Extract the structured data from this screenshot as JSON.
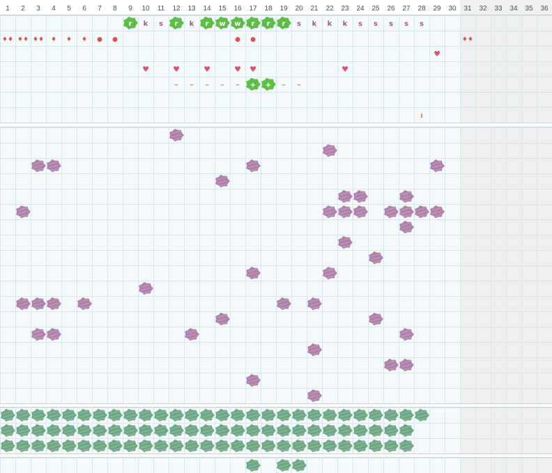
{
  "columns": [
    "1",
    "2",
    "3",
    "4",
    "5",
    "6",
    "7",
    "8",
    "9",
    "10",
    "11",
    "12",
    "13",
    "14",
    "15",
    "16",
    "17",
    "18",
    "19",
    "20",
    "21",
    "22",
    "23",
    "24",
    "25",
    "26",
    "27",
    "28",
    "29",
    "30",
    "31",
    "32",
    "33",
    "34",
    "35",
    "36"
  ],
  "active_columns": 30,
  "colors": {
    "grid_line": "#d8e6ec",
    "cell_bg": "#f4f9fb",
    "disabled_bg": "#efefef",
    "separator": "#c9d6dc",
    "purple_blob": "#b07fab",
    "green_blob": "#6da885",
    "green_token": "#5bbf45",
    "red": "#d9534f",
    "heart": "#e05070",
    "orange": "#ef8a3c"
  },
  "icons": {
    "purple_blob": "purple-blob-icon",
    "green_blob": "green-blob-icon",
    "green_token": "green-token-icon",
    "heart": "heart-icon",
    "dot": "dot-icon",
    "drop": "drop-icon",
    "diamond": "diamond-icon"
  },
  "top_rows": {
    "row1": [
      {
        "col": 9,
        "kind": "token",
        "text": "r"
      },
      {
        "col": 10,
        "kind": "letter",
        "text": "k"
      },
      {
        "col": 11,
        "kind": "letter",
        "text": "s"
      },
      {
        "col": 12,
        "kind": "token",
        "text": "r"
      },
      {
        "col": 13,
        "kind": "letter",
        "text": "k"
      },
      {
        "col": 14,
        "kind": "token",
        "text": "r"
      },
      {
        "col": 15,
        "kind": "token",
        "text": "w"
      },
      {
        "col": 16,
        "kind": "token",
        "text": "w"
      },
      {
        "col": 17,
        "kind": "token",
        "text": "r"
      },
      {
        "col": 18,
        "kind": "token",
        "text": "r"
      },
      {
        "col": 19,
        "kind": "token",
        "text": "r"
      },
      {
        "col": 20,
        "kind": "letter",
        "text": "s"
      },
      {
        "col": 21,
        "kind": "letter",
        "text": "k"
      },
      {
        "col": 22,
        "kind": "letter",
        "text": "k"
      },
      {
        "col": 23,
        "kind": "letter",
        "text": "k"
      },
      {
        "col": 24,
        "kind": "letter",
        "text": "s"
      },
      {
        "col": 25,
        "kind": "letter",
        "text": "s"
      },
      {
        "col": 26,
        "kind": "letter",
        "text": "s"
      },
      {
        "col": 27,
        "kind": "letter",
        "text": "s"
      },
      {
        "col": 28,
        "kind": "letter",
        "text": "s"
      }
    ],
    "row2": [
      {
        "col": 1,
        "kind": "red",
        "text": "♦♦"
      },
      {
        "col": 2,
        "kind": "red",
        "text": "♦♦"
      },
      {
        "col": 3,
        "kind": "red",
        "text": "♦♦"
      },
      {
        "col": 4,
        "kind": "red",
        "text": "♦"
      },
      {
        "col": 5,
        "kind": "red",
        "text": "♦"
      },
      {
        "col": 6,
        "kind": "red",
        "text": "♦"
      },
      {
        "col": 7,
        "kind": "red",
        "text": "●"
      },
      {
        "col": 8,
        "kind": "red",
        "text": "●"
      },
      {
        "col": 16,
        "kind": "red",
        "text": "●"
      },
      {
        "col": 17,
        "kind": "red",
        "text": "●"
      },
      {
        "col": 31,
        "kind": "red",
        "text": "♦♦"
      }
    ],
    "row3": [
      {
        "col": 29,
        "kind": "heart",
        "text": "♥"
      }
    ],
    "row4": [
      {
        "col": 10,
        "kind": "heart",
        "text": "♥"
      },
      {
        "col": 12,
        "kind": "heart",
        "text": "♥"
      },
      {
        "col": 14,
        "kind": "heart",
        "text": "♥"
      },
      {
        "col": 16,
        "kind": "heart",
        "text": "♥"
      },
      {
        "col": 17,
        "kind": "heart",
        "text": "♥"
      },
      {
        "col": 23,
        "kind": "heart",
        "text": "♥"
      }
    ],
    "row5": [
      {
        "col": 12,
        "kind": "dash",
        "text": "–"
      },
      {
        "col": 13,
        "kind": "dash",
        "text": "–"
      },
      {
        "col": 14,
        "kind": "dash",
        "text": "–"
      },
      {
        "col": 15,
        "kind": "dash",
        "text": "–"
      },
      {
        "col": 16,
        "kind": "dash",
        "text": "–"
      },
      {
        "col": 17,
        "kind": "token",
        "text": "+"
      },
      {
        "col": 18,
        "kind": "token",
        "text": "+"
      },
      {
        "col": 19,
        "kind": "dash",
        "text": "–"
      },
      {
        "col": 20,
        "kind": "dash",
        "text": "–"
      }
    ],
    "row7": [
      {
        "col": 28,
        "kind": "tick",
        "text": "ı"
      }
    ]
  },
  "purple_cells": [
    [
      12,
      1
    ],
    [
      22,
      2
    ],
    [
      3,
      3
    ],
    [
      4,
      3
    ],
    [
      17,
      3
    ],
    [
      29,
      3
    ],
    [
      15,
      4
    ],
    [
      23,
      5
    ],
    [
      24,
      5
    ],
    [
      27,
      5
    ],
    [
      2,
      6
    ],
    [
      22,
      6
    ],
    [
      23,
      6
    ],
    [
      24,
      6
    ],
    [
      26,
      6
    ],
    [
      27,
      6
    ],
    [
      28,
      6
    ],
    [
      29,
      6
    ],
    [
      27,
      7
    ],
    [
      23,
      8
    ],
    [
      25,
      9
    ],
    [
      17,
      10
    ],
    [
      22,
      10
    ],
    [
      10,
      11
    ],
    [
      2,
      12
    ],
    [
      3,
      12
    ],
    [
      4,
      12
    ],
    [
      6,
      12
    ],
    [
      19,
      12
    ],
    [
      21,
      12
    ],
    [
      15,
      13
    ],
    [
      25,
      13
    ],
    [
      3,
      14
    ],
    [
      4,
      14
    ],
    [
      13,
      14
    ],
    [
      27,
      14
    ],
    [
      21,
      15
    ],
    [
      26,
      16
    ],
    [
      27,
      16
    ],
    [
      17,
      17
    ],
    [
      21,
      18
    ]
  ],
  "green_rows": [
    28,
    27,
    27
  ],
  "bottom_row": [
    17,
    19,
    20
  ]
}
